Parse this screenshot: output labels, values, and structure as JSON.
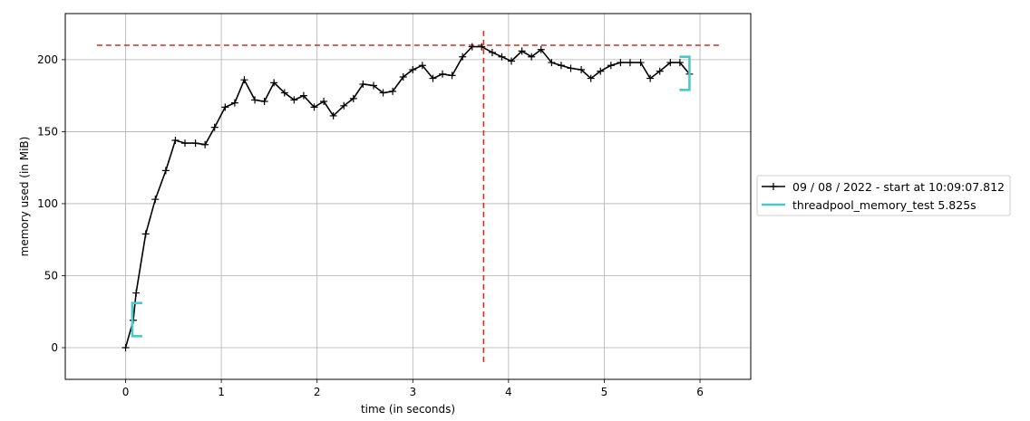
{
  "chart_data": {
    "type": "line",
    "xlabel": "time (in seconds)",
    "ylabel": "memory used (in MiB)",
    "xlim": [
      -0.63,
      6.53
    ],
    "ylim": [
      -22,
      232
    ],
    "x_ticks": [
      0,
      1,
      2,
      3,
      4,
      5,
      6
    ],
    "y_ticks": [
      0,
      50,
      100,
      150,
      200
    ],
    "grid": true,
    "legend_placement": "center-right outside plot",
    "series": [
      {
        "name": "09 / 08 / 2022 - start at 10:09:07.812",
        "color": "#000000",
        "marker": "+",
        "x": [
          0.0,
          0.08,
          0.11,
          0.21,
          0.31,
          0.42,
          0.52,
          0.62,
          0.73,
          0.83,
          0.93,
          1.04,
          1.14,
          1.24,
          1.35,
          1.45,
          1.55,
          1.66,
          1.76,
          1.86,
          1.97,
          2.07,
          2.17,
          2.28,
          2.38,
          2.48,
          2.59,
          2.69,
          2.79,
          2.9,
          3.0,
          3.1,
          3.21,
          3.31,
          3.41,
          3.52,
          3.62,
          3.72,
          3.83,
          3.93,
          4.03,
          4.14,
          4.24,
          4.34,
          4.45,
          4.55,
          4.65,
          4.76,
          4.86,
          4.96,
          5.07,
          5.17,
          5.27,
          5.38,
          5.48,
          5.58,
          5.69,
          5.79,
          5.89
        ],
        "y": [
          0,
          19,
          38,
          79,
          103,
          123,
          144,
          142,
          142,
          141,
          153,
          167,
          170,
          186,
          172,
          171,
          184,
          177,
          172,
          175,
          167,
          171,
          161,
          168,
          173,
          183,
          182,
          177,
          178,
          188,
          193,
          196,
          187,
          190,
          189,
          202,
          209,
          209,
          205,
          202,
          199,
          206,
          202,
          207,
          198,
          196,
          194,
          193,
          187,
          192,
          196,
          198,
          198,
          198,
          187,
          192,
          198,
          198,
          190
        ]
      },
      {
        "name": "threadpool_memory_test 5.825s",
        "color": "#4ac9c9",
        "type": "bracket",
        "start": 0.07,
        "end": 5.89,
        "start_range": [
          8,
          31
        ],
        "end_range": [
          179,
          202
        ]
      }
    ],
    "annotations": {
      "max_hline": {
        "y": 210,
        "x_range": [
          -0.3,
          6.2
        ],
        "color": "#d62c1a",
        "style": "dashed"
      },
      "max_vline": {
        "x": 3.74,
        "y_range": [
          -10,
          220
        ],
        "color": "#d62c1a",
        "style": "dashed"
      }
    }
  }
}
